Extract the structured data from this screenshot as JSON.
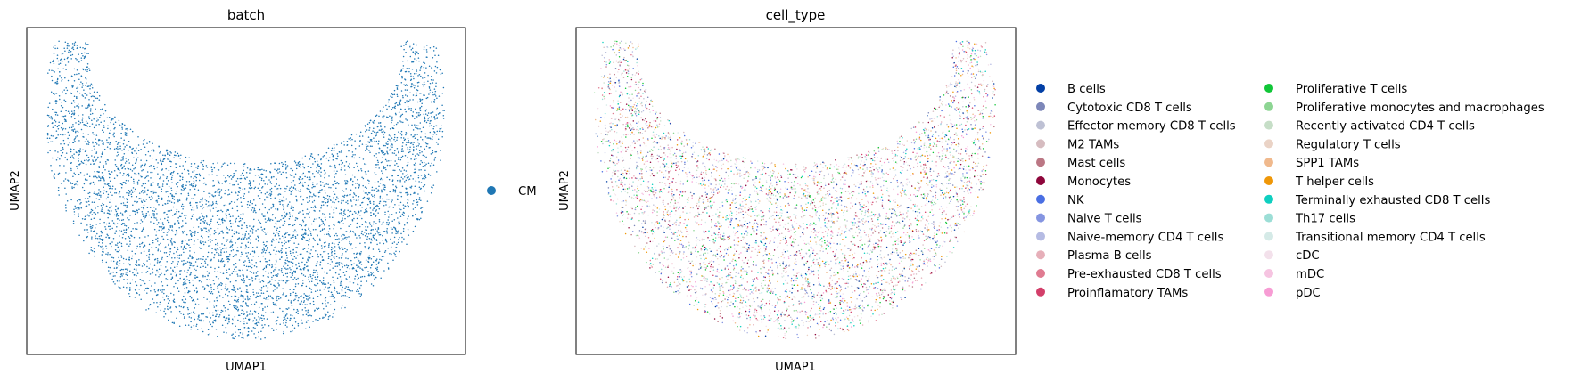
{
  "chart_data": [
    {
      "type": "scatter",
      "title": "batch",
      "xlabel": "UMAP1",
      "ylabel": "UMAP2",
      "grid": false,
      "legend_position": "right",
      "categories": [
        "CM"
      ],
      "colors": [
        "#1f77b4"
      ]
    },
    {
      "type": "scatter",
      "title": "cell_type",
      "xlabel": "UMAP1",
      "ylabel": "UMAP2",
      "grid": false,
      "legend_position": "right",
      "legend_columns": 2,
      "categories": [
        "B cells",
        "Cytotoxic CD8 T cells",
        "Effector memory CD8 T cells",
        "M2 TAMs",
        "Mast cells",
        "Monocytes",
        "NK",
        "Naive T cells",
        "Naive-memory CD4 T cells",
        "Plasma B cells",
        "Pre-exhausted CD8 T cells",
        "Proinflamatory TAMs",
        "Proliferative T cells",
        "Proliferative monocytes and macrophages",
        "Recently activated CD4 T cells",
        "Regulatory T cells",
        "SPP1 TAMs",
        "T helper cells",
        "Terminally exhausted CD8 T cells",
        "Th17 cells",
        "Transitional memory CD4 T cells",
        "cDC",
        "mDC",
        "pDC"
      ],
      "colors": [
        "#023fa5",
        "#7d87b9",
        "#bec1d4",
        "#d6bcc0",
        "#bb7784",
        "#8e063b",
        "#4a6fe3",
        "#8595e1",
        "#b5bbe3",
        "#e6afb9",
        "#e07b91",
        "#d33f6a",
        "#11c638",
        "#8dd593",
        "#c6dec7",
        "#ead3c6",
        "#f0b98d",
        "#ef9708",
        "#0fcfc0",
        "#9cded6",
        "#d5eae7",
        "#f3e1eb",
        "#f6c4e1",
        "#f79cd4"
      ]
    }
  ]
}
